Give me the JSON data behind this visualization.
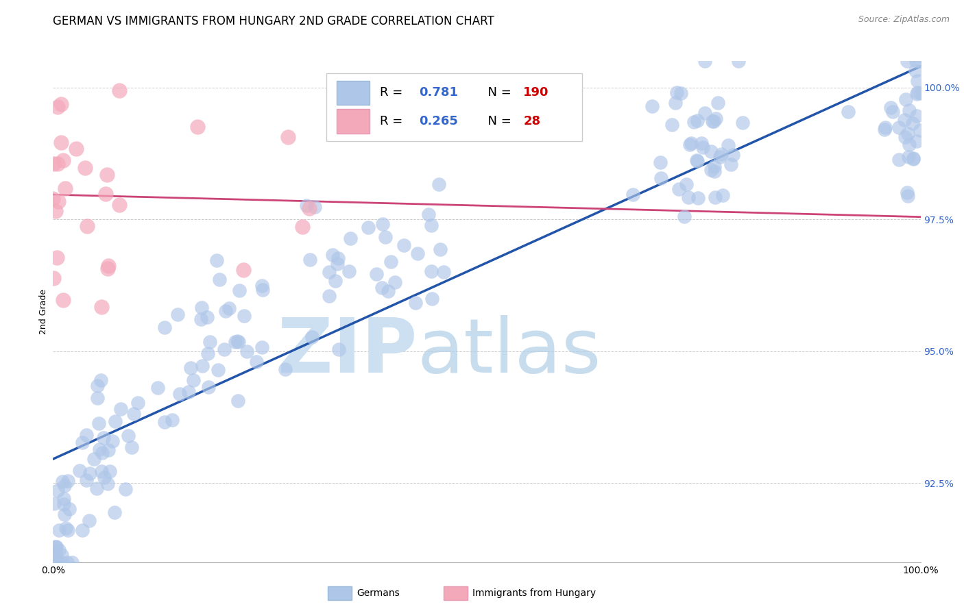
{
  "title": "GERMAN VS IMMIGRANTS FROM HUNGARY 2ND GRADE CORRELATION CHART",
  "source": "Source: ZipAtlas.com",
  "ylabel": "2nd Grade",
  "legend": {
    "german_R": 0.781,
    "german_N": 190,
    "hungary_R": 0.265,
    "hungary_N": 28
  },
  "german_color": "#aec6e8",
  "german_line_color": "#2255aa",
  "hungary_color": "#f4a9bb",
  "hungary_line_color": "#cc4477",
  "background_color": "#ffffff",
  "grid_color": "#cccccc",
  "ytick_color": "#3366cc",
  "N_color": "#cc0000",
  "ytick_labels": [
    "92.5%",
    "95.0%",
    "97.5%",
    "100.0%"
  ],
  "ytick_values": [
    0.925,
    0.95,
    0.975,
    1.0
  ],
  "xmin": 0.0,
  "xmax": 1.0,
  "ymin": 0.91,
  "ymax": 1.005,
  "title_fontsize": 12,
  "source_fontsize": 9,
  "axis_label_fontsize": 9,
  "tick_fontsize": 10,
  "legend_fontsize": 13,
  "watermark_zip_color": "#cde0f2",
  "watermark_atlas_color": "#b0cfe8"
}
